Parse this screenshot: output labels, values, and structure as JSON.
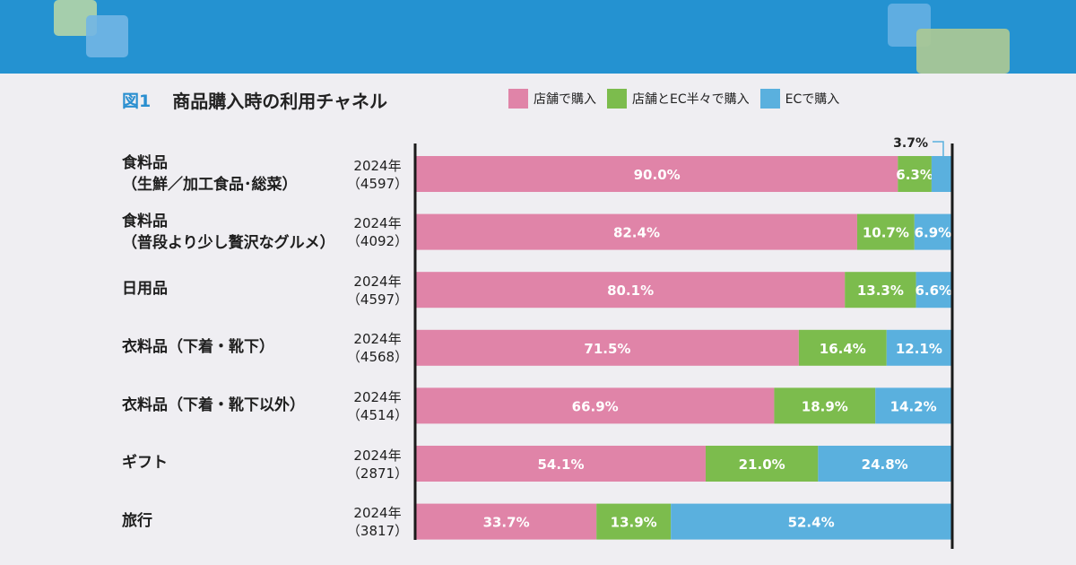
{
  "header": {
    "figure_label": "図1",
    "title": "商品購入時の利用チャネル"
  },
  "legend": [
    {
      "label": "店舗で購入",
      "color": "#e084a8"
    },
    {
      "label": "店舗とEC半々で購入",
      "color": "#7cbc4d"
    },
    {
      "label": "ECで購入",
      "color": "#5ab0de"
    }
  ],
  "chart_data": {
    "type": "bar",
    "orientation": "horizontal",
    "stacked": true,
    "xlim": [
      0,
      100
    ],
    "categories": [
      {
        "line1": "食料品",
        "line2": "（生鮮／加工食品･総菜）",
        "year": "2024年",
        "n": "（4597）"
      },
      {
        "line1": "食料品",
        "line2": "（普段より少し贅沢なグルメ）",
        "year": "2024年",
        "n": "（4092）"
      },
      {
        "line1": "日用品",
        "line2": "",
        "year": "2024年",
        "n": "（4597）"
      },
      {
        "line1": "衣料品（下着・靴下）",
        "line2": "",
        "year": "2024年",
        "n": "（4568）"
      },
      {
        "line1": "衣料品（下着・靴下以外）",
        "line2": "",
        "year": "2024年",
        "n": "（4514）"
      },
      {
        "line1": "ギフト",
        "line2": "",
        "year": "2024年",
        "n": "（2871）"
      },
      {
        "line1": "旅行",
        "line2": "",
        "year": "2024年",
        "n": "（3817）"
      }
    ],
    "series": [
      {
        "name": "店舗で購入",
        "values": [
          90.0,
          82.4,
          80.1,
          71.5,
          66.9,
          54.1,
          33.7
        ],
        "labels": [
          "90.0%",
          "82.4%",
          "80.1%",
          "71.5%",
          "66.9%",
          "54.1%",
          "33.7%"
        ]
      },
      {
        "name": "店舗とEC半々で購入",
        "values": [
          6.3,
          10.7,
          13.3,
          16.4,
          18.9,
          21.0,
          13.9
        ],
        "labels": [
          "6.3%",
          "10.7%",
          "13.3%",
          "16.4%",
          "18.9%",
          "21.0%",
          "13.9%"
        ]
      },
      {
        "name": "ECで購入",
        "values": [
          3.7,
          6.9,
          6.6,
          12.1,
          14.2,
          24.8,
          52.4
        ],
        "labels": [
          "3.7%",
          "6.9%",
          "6.6%",
          "12.1%",
          "14.2%",
          "24.8%",
          "52.4%"
        ]
      }
    ],
    "callout": "3.7%"
  }
}
